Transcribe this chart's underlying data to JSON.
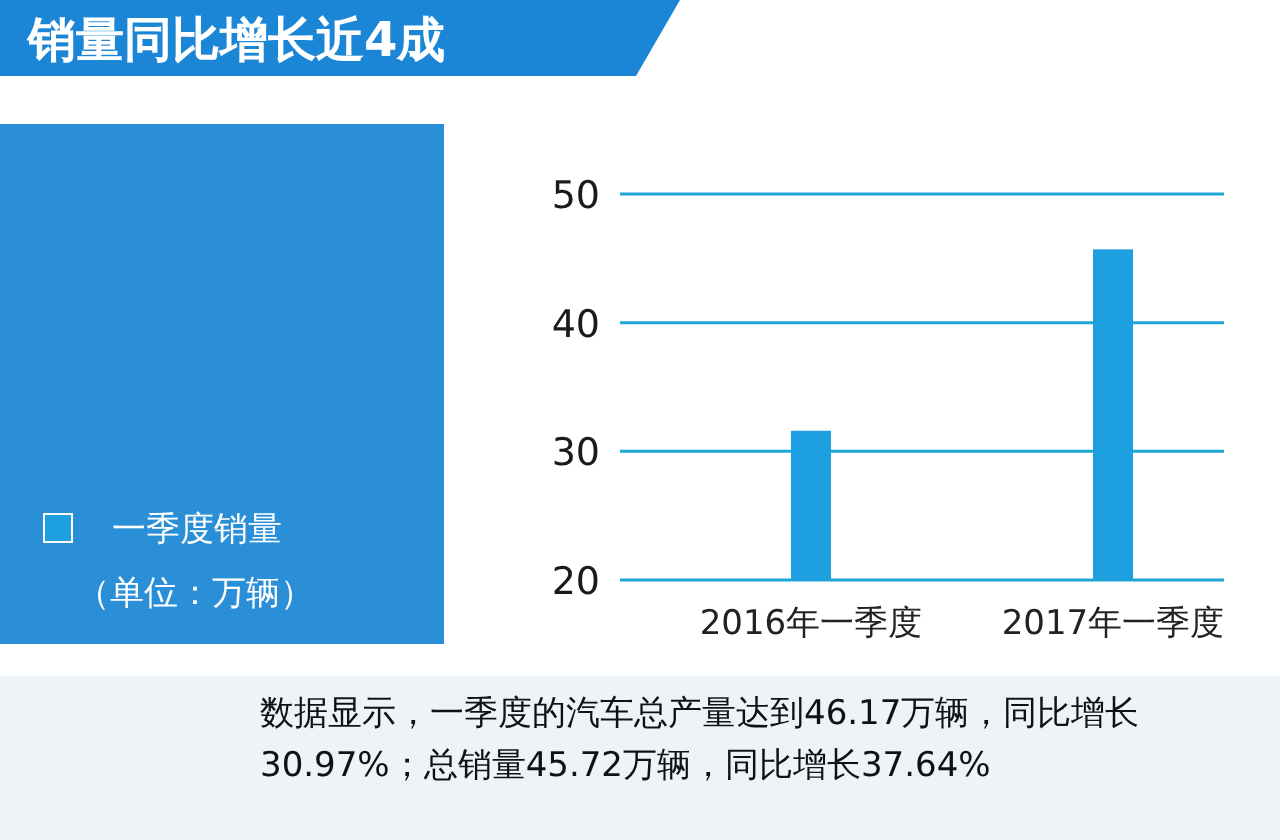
{
  "chart_data": {
    "type": "bar",
    "title": "销量同比增长近4成",
    "categories": [
      "2016年一季度",
      "2017年一季度"
    ],
    "series": [
      {
        "name": "一季度销量",
        "color": "#1e9fe0",
        "values": [
          31.6,
          45.7
        ]
      }
    ],
    "legend_title": "（单位：万辆）",
    "ylim": [
      20,
      50
    ],
    "yticks": [
      20,
      30,
      40,
      50
    ],
    "grid": "y",
    "legend": "left",
    "annotations": [
      "数据显示，一季度的汽车总产量达到46.17万辆，同比增长30.97%；总销量45.72万辆，同比增长37.64%"
    ]
  }
}
